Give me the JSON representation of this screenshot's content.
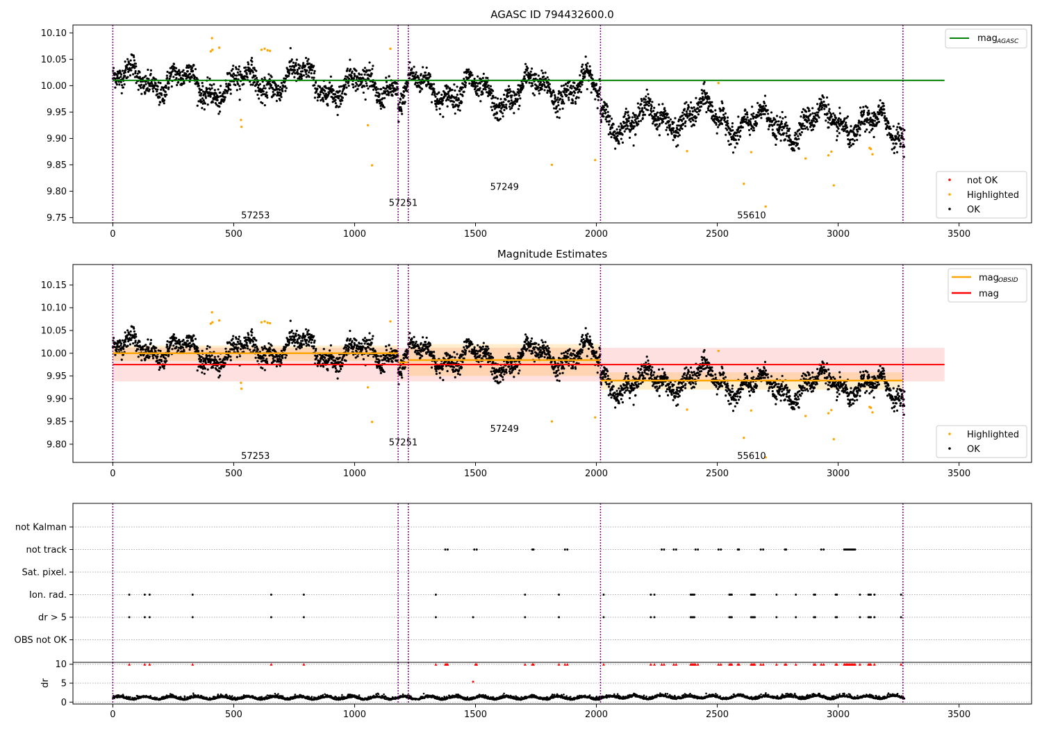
{
  "chart_data": [
    {
      "type": "scatter",
      "title": "AGASC ID 794432600.0",
      "xlim": [
        -165,
        3800
      ],
      "ylim": [
        9.74,
        10.115
      ],
      "xticks": [
        "0",
        "500",
        "1000",
        "1500",
        "2000",
        "2500",
        "3000",
        "3500"
      ],
      "yticks": [
        "9.75",
        "9.80",
        "9.85",
        "9.90",
        "9.95",
        "10.00",
        "10.05",
        "10.10"
      ],
      "obsid_boundaries": [
        0,
        1180,
        1222,
        2017,
        3268
      ],
      "obsid_labels": [
        {
          "text": "57253",
          "x": 590,
          "y": 9.755
        },
        {
          "text": "57251",
          "x": 1201,
          "y": 9.779
        },
        {
          "text": "57249",
          "x": 1620,
          "y": 9.809
        },
        {
          "text": "55610",
          "x": 2642,
          "y": 9.755
        }
      ],
      "mag_agasc": {
        "y": 10.01,
        "x_range": [
          0,
          3440
        ]
      },
      "legend_top": [
        {
          "label": "mag",
          "sub": "AGASC",
          "color": "#008000"
        }
      ],
      "legend_bottom": [
        {
          "label": "not OK",
          "color": "#ff0000"
        },
        {
          "label": "Highlighted",
          "color": "#ffa500"
        },
        {
          "label": "OK",
          "color": "#000000"
        }
      ]
    },
    {
      "type": "scatter",
      "title": "Magnitude Estimates",
      "xlim": [
        -165,
        3800
      ],
      "ylim": [
        9.76,
        10.195
      ],
      "xticks": [
        "0",
        "500",
        "1000",
        "1500",
        "2000",
        "2500",
        "3000",
        "3500"
      ],
      "yticks": [
        "9.80",
        "9.85",
        "9.90",
        "9.95",
        "10.00",
        "10.05",
        "10.10",
        "10.15"
      ],
      "obsid_boundaries": [
        0,
        1180,
        1222,
        2017,
        3268
      ],
      "obsid_labels": [
        {
          "text": "57253",
          "x": 590,
          "y": 9.775
        },
        {
          "text": "57251",
          "x": 1201,
          "y": 9.805
        },
        {
          "text": "57249",
          "x": 1620,
          "y": 9.835
        },
        {
          "text": "55610",
          "x": 2642,
          "y": 9.775
        }
      ],
      "mag": {
        "y": 9.975,
        "band": [
          9.938,
          10.012
        ],
        "x_range": [
          0,
          3440
        ]
      },
      "mag_obsid": [
        {
          "x_range": [
            0,
            1180
          ],
          "y": 10.0,
          "band": [
            9.983,
            10.017
          ]
        },
        {
          "x_range": [
            1180,
            1222
          ],
          "y": 9.98,
          "band": [
            9.963,
            9.997
          ]
        },
        {
          "x_range": [
            1222,
            2017
          ],
          "y": 9.985,
          "band": [
            9.95,
            10.02
          ]
        },
        {
          "x_range": [
            2017,
            3268
          ],
          "y": 9.94,
          "band": [
            9.92,
            9.958
          ]
        }
      ],
      "legend_top": [
        {
          "label": "mag",
          "sub": "OBSID",
          "color": "#ffa500"
        },
        {
          "label": "mag",
          "sub": "",
          "color": "#ff0000"
        }
      ],
      "legend_bottom": [
        {
          "label": "Highlighted",
          "color": "#ffa500"
        },
        {
          "label": "OK",
          "color": "#000000"
        }
      ]
    },
    {
      "type": "scatter",
      "xlim": [
        -165,
        3800
      ],
      "flag_categories": [
        "not Kalman",
        "not track",
        "Sat. pixel.",
        "Ion. rad.",
        "dr > 5",
        "OBS not OK"
      ],
      "flags": {
        "not track": [
          1375,
          1385,
          1495,
          1505,
          1735,
          1740,
          1870,
          1880,
          2270,
          2280,
          2320,
          2330,
          2410,
          2420,
          2505,
          2515,
          2585,
          2590,
          2680,
          2690,
          2780,
          2785,
          2930,
          2940,
          3025,
          3030,
          3035,
          3040,
          3045,
          3050,
          3055,
          3060,
          3065,
          3070
        ],
        "Ion. rad.": [
          68,
          132,
          152,
          330,
          655,
          790,
          1336,
          1705,
          1845,
          2030,
          2225,
          2240,
          2390,
          2395,
          2400,
          2405,
          2550,
          2555,
          2560,
          2640,
          2645,
          2650,
          2655,
          2745,
          2825,
          2900,
          2905,
          2990,
          2995,
          3090,
          3125,
          3130,
          3135,
          3150,
          3260
        ],
        "dr > 5": [
          68,
          132,
          152,
          330,
          655,
          790,
          1336,
          1490,
          1705,
          1845,
          2030,
          2225,
          2240,
          2390,
          2395,
          2400,
          2405,
          2550,
          2555,
          2560,
          2640,
          2645,
          2650,
          2655,
          2745,
          2825,
          2900,
          2905,
          2990,
          2995,
          3090,
          3125,
          3130,
          3135,
          3150,
          3260
        ]
      },
      "obsid_boundaries": [
        0,
        1180,
        1222,
        2017,
        3268
      ]
    },
    {
      "type": "scatter",
      "ylabel": "dr",
      "xlim": [
        -165,
        3800
      ],
      "ylim": [
        -0.5,
        10.5
      ],
      "xticks": [
        "0",
        "500",
        "1000",
        "1500",
        "2000",
        "2500",
        "3000",
        "3500"
      ],
      "yticks": [
        "0",
        "5",
        "10"
      ],
      "clipped_over_10": [
        68,
        132,
        152,
        330,
        655,
        790,
        1336,
        1375,
        1380,
        1385,
        1500,
        1505,
        1705,
        1735,
        1740,
        1845,
        1870,
        1880,
        2030,
        2225,
        2240,
        2270,
        2280,
        2320,
        2330,
        2390,
        2395,
        2400,
        2405,
        2410,
        2420,
        2505,
        2515,
        2550,
        2555,
        2560,
        2585,
        2590,
        2640,
        2645,
        2650,
        2655,
        2680,
        2690,
        2745,
        2780,
        2785,
        2825,
        2900,
        2905,
        2930,
        2940,
        2990,
        2995,
        3025,
        3030,
        3035,
        3040,
        3045,
        3050,
        3055,
        3060,
        3065,
        3070,
        3090,
        3125,
        3130,
        3135,
        3150,
        3260
      ],
      "single_points": [
        {
          "x": 1490,
          "y": 5.4
        }
      ],
      "obsid_boundaries": [
        0,
        1180,
        1222,
        2017,
        3268
      ]
    }
  ]
}
